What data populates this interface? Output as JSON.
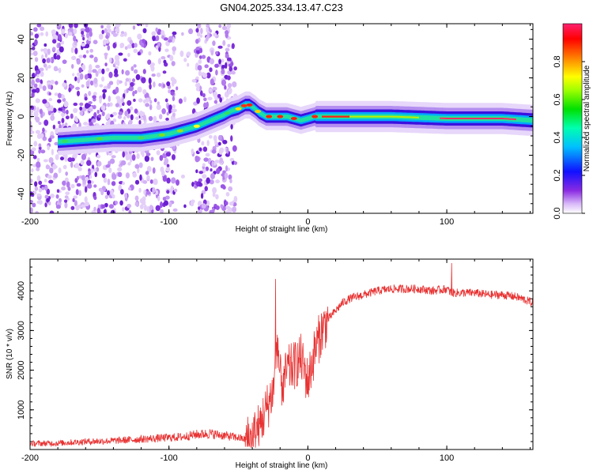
{
  "page_title": "GN04.2025.334.13.47.C23",
  "chart_data": [
    {
      "type": "heatmap",
      "title": "GN04.2025.334.13.47.C23",
      "xlabel": "Height of straight line (km)",
      "ylabel": "Frequency (Hz)",
      "xlim": [
        -200,
        162
      ],
      "ylim": [
        -50,
        48
      ],
      "x_ticks": [
        "-200",
        "-100",
        "0",
        "100"
      ],
      "y_ticks": [
        "-40",
        "-20",
        "0",
        "20",
        "40"
      ],
      "colorbar": {
        "label": "Normalized spectral amplitude",
        "range": [
          0.0,
          1.0
        ],
        "ticks": [
          "0.0",
          "0.2",
          "0.4",
          "0.6",
          "0.8"
        ]
      },
      "ridge": {
        "x": [
          -180,
          -160,
          -140,
          -120,
          -100,
          -90,
          -80,
          -70,
          -60,
          -55,
          -50,
          -45,
          -42,
          -38,
          -35,
          -30,
          -25,
          -20,
          -15,
          -10,
          -5,
          0,
          5,
          20,
          60,
          100,
          140,
          162
        ],
        "y": [
          -13,
          -12,
          -11,
          -11,
          -9,
          -7,
          -5,
          -2,
          1,
          3,
          4,
          6,
          6,
          4,
          2,
          0,
          0,
          0,
          0,
          -1,
          -2,
          -1,
          0,
          0,
          0,
          -1,
          -1,
          -2
        ]
      },
      "noise_region": [
        -200,
        -52
      ]
    },
    {
      "type": "line",
      "xlabel": "Height of straight line (km)",
      "ylabel": "SNR (10 * v/v)",
      "xlim": [
        -200,
        162
      ],
      "ylim": [
        0,
        4800
      ],
      "x_ticks": [
        "-200",
        "-100",
        "0",
        "100"
      ],
      "y_ticks": [
        "1000",
        "2000",
        "3000",
        "4000"
      ],
      "color": "#e83232",
      "series": [
        {
          "name": "SNR",
          "x": [
            -200,
            -180,
            -160,
            -140,
            -120,
            -100,
            -90,
            -80,
            -70,
            -60,
            -50,
            -45,
            -40,
            -35,
            -30,
            -25,
            -22,
            -20,
            -18,
            -15,
            -10,
            -5,
            0,
            5,
            10,
            15,
            20,
            25,
            30,
            40,
            50,
            60,
            70,
            80,
            90,
            100,
            103,
            110,
            120,
            130,
            140,
            150,
            162
          ],
          "values": [
            150,
            160,
            200,
            220,
            260,
            300,
            320,
            380,
            400,
            350,
            300,
            250,
            300,
            600,
            1000,
            1500,
            2800,
            1800,
            1600,
            2000,
            2100,
            2300,
            1700,
            2500,
            3000,
            3300,
            3500,
            3700,
            3800,
            3900,
            4000,
            4050,
            4050,
            4050,
            4000,
            4050,
            3950,
            3950,
            3950,
            3900,
            3900,
            3850,
            3700
          ]
        }
      ]
    }
  ]
}
